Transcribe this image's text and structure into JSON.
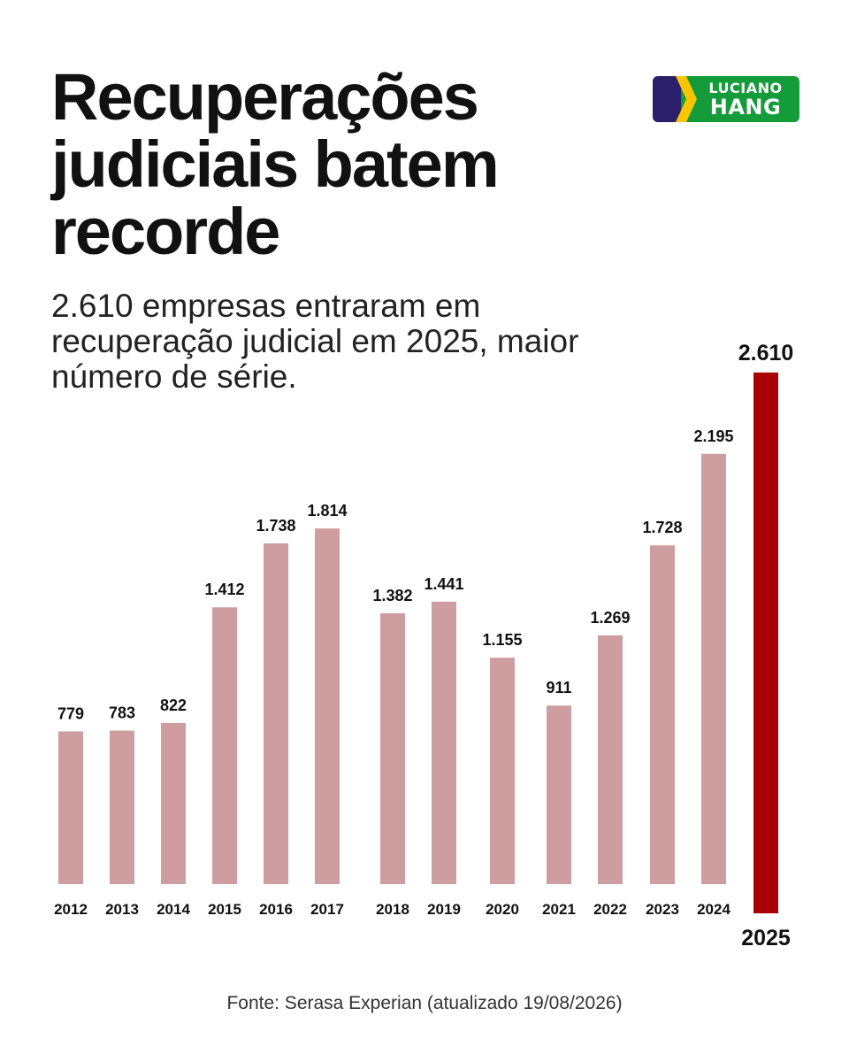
{
  "title": "Recuperações judiciais batem recorde",
  "subtitle": "2.610 empresas entraram em recuperação judicial em 2025, maior número de série.",
  "logo": {
    "line1": "LUCIANO",
    "line2": "HANG"
  },
  "source": "Fonte: Serasa Experian (atualizado 19/08/2026)",
  "colors": {
    "bar": "#cd9d9f",
    "highlight": "#a90006",
    "text": "#111111",
    "logo_green": "#149b3a",
    "logo_blue": "#2b1f6b",
    "logo_yellow": "#f7c600"
  },
  "chart_data": {
    "type": "bar",
    "categories": [
      "2012",
      "2013",
      "2014",
      "2015",
      "2016",
      "2017",
      "2018",
      "2019",
      "2020",
      "2021",
      "2022",
      "2023",
      "2024",
      "2025"
    ],
    "values": [
      779,
      783,
      822,
      1412,
      1738,
      1814,
      1382,
      1441,
      1155,
      911,
      1269,
      1728,
      2195,
      2610
    ],
    "value_labels": [
      "779",
      "783",
      "822",
      "1.412",
      "1.738",
      "1.814",
      "1.382",
      "1.441",
      "1.155",
      "911",
      "1.269",
      "1.728",
      "2.195",
      "2.610"
    ],
    "highlight_category": "2025",
    "grid": false,
    "legend": "none",
    "xlabel": "",
    "ylabel": ""
  }
}
